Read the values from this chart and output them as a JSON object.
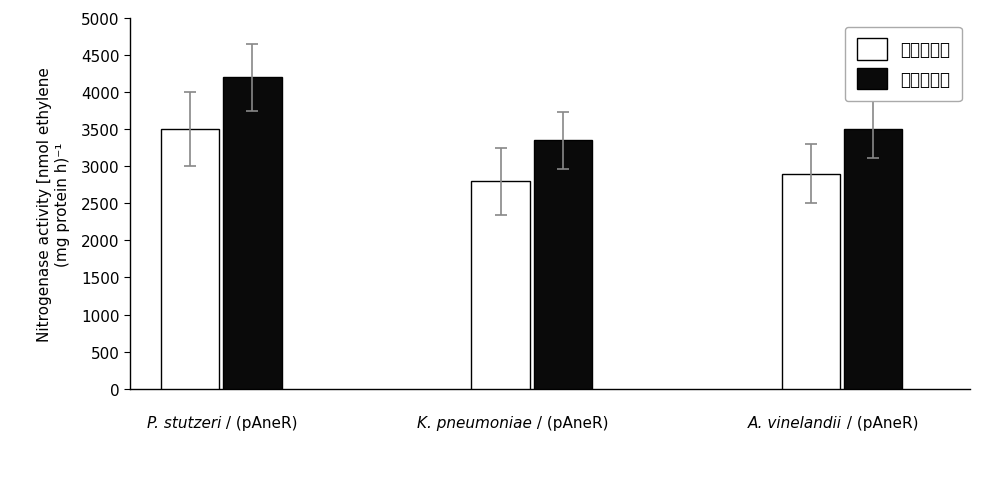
{
  "groups": [
    "P. stutzeri / (pAneR)",
    "K. pneumoniae / (pAneR)",
    "A. vinelandii / (pAneR)"
  ],
  "white_values": [
    3500,
    2800,
    2900
  ],
  "black_values": [
    4200,
    3350,
    3500
  ],
  "white_errors": [
    500,
    450,
    400
  ],
  "black_errors": [
    450,
    390,
    390
  ],
  "ylabel": "Nitrogenase activity [nmol ethylene\n(mg protein h)⁻¹",
  "legend_white": "底盘固氮菌",
  "legend_black": "重组工程菌",
  "ylim": [
    0,
    5000
  ],
  "yticks": [
    0,
    500,
    1000,
    1500,
    2000,
    2500,
    3000,
    3500,
    4000,
    4500,
    5000
  ],
  "bar_width": 0.32,
  "group_centers": [
    0.5,
    2.2,
    3.9
  ],
  "white_color": "#ffffff",
  "black_color": "#0a0a0a",
  "edge_color": "#000000",
  "error_color": "#888888",
  "background_color": "#ffffff",
  "italic_parts": [
    [
      "P. stutzeri",
      " / (pAneR)"
    ],
    [
      "K. pneumoniae",
      " / (pAneR)"
    ],
    [
      "A. vinelandii",
      " / (pAneR)"
    ]
  ],
  "figsize": [
    10.0,
    4.81
  ],
  "dpi": 100,
  "fontsize": 11,
  "ylabel_fontsize": 11,
  "legend_fontsize": 12
}
